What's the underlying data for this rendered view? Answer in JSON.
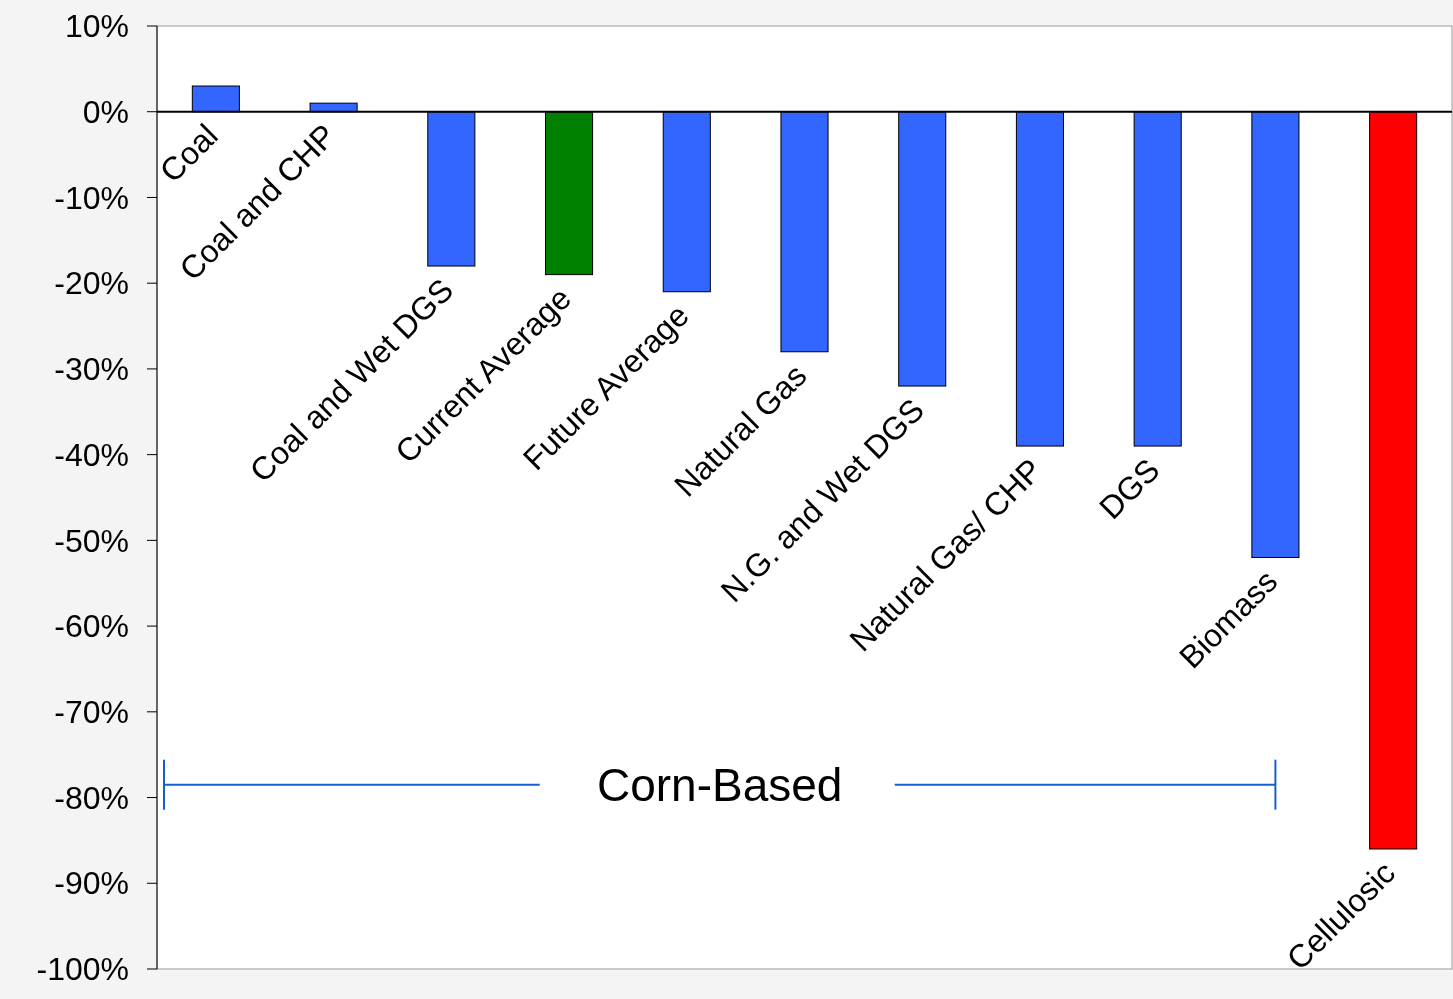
{
  "chart_data": {
    "type": "bar",
    "categories": [
      "Coal",
      "Coal and CHP",
      "Coal and Wet DGS",
      "Current Average",
      "Future Average",
      "Natural Gas",
      "N.G. and Wet DGS",
      "Natural Gas/ CHP",
      "DGS",
      "Biomass",
      "Cellulosic"
    ],
    "values": [
      3,
      1,
      -18,
      -19,
      -21,
      -28,
      -32,
      -39,
      -39,
      -52,
      -86
    ],
    "colors": [
      "#3366ff",
      "#3366ff",
      "#3366ff",
      "#007f00",
      "#3366ff",
      "#3366ff",
      "#3366ff",
      "#3366ff",
      "#3366ff",
      "#3366ff",
      "#ff0000"
    ],
    "ylim": [
      -100,
      10
    ],
    "yticks": [
      {
        "value": 10,
        "label": "10%"
      },
      {
        "value": 0,
        "label": "0%"
      },
      {
        "value": -10,
        "label": "-10%"
      },
      {
        "value": -20,
        "label": "-20%"
      },
      {
        "value": -30,
        "label": "-30%"
      },
      {
        "value": -40,
        "label": "-40%"
      },
      {
        "value": -50,
        "label": "-50%"
      },
      {
        "value": -60,
        "label": "-60%"
      },
      {
        "value": -70,
        "label": "-70%"
      },
      {
        "value": -80,
        "label": "-80%"
      },
      {
        "value": -90,
        "label": "-90%"
      },
      {
        "value": -100,
        "label": "-100%"
      }
    ],
    "annotations": [
      "Corn-Based"
    ],
    "grid": false
  }
}
